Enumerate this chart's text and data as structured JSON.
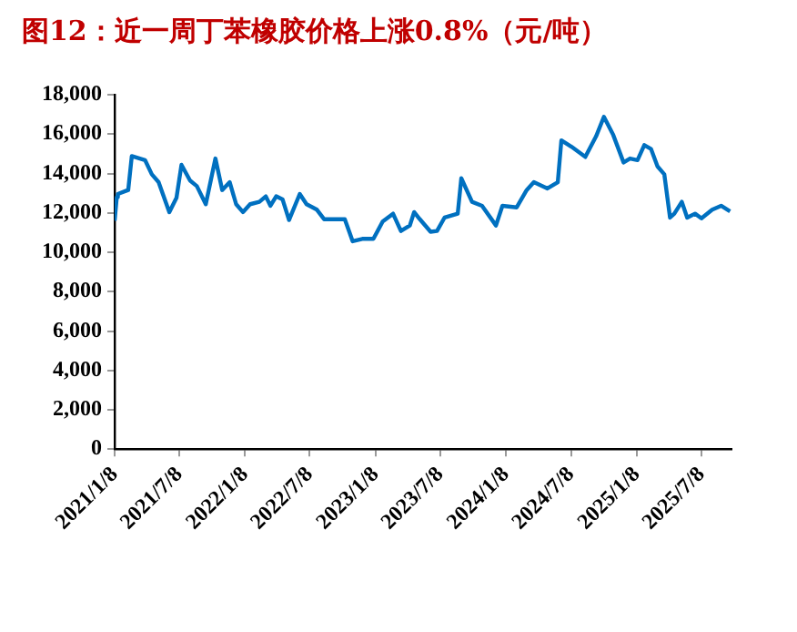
{
  "chart_data": {
    "type": "line",
    "title": "图12：近一周丁苯橡胶价格上涨0.8%（元/吨）",
    "x": [
      "2021-01-08",
      "2021-01-14",
      "2021-01-17",
      "2021-02-15",
      "2021-02-25",
      "2021-04-03",
      "2021-04-22",
      "2021-05-11",
      "2021-06-10",
      "2021-06-30",
      "2021-07-14",
      "2021-08-07",
      "2021-08-26",
      "2021-09-20",
      "2021-10-17",
      "2021-11-05",
      "2021-11-26",
      "2021-12-14",
      "2022-01-02",
      "2022-01-22",
      "2022-02-17",
      "2022-03-07",
      "2022-03-20",
      "2022-04-05",
      "2022-04-23",
      "2022-05-11",
      "2022-06-10",
      "2022-06-29",
      "2022-07-28",
      "2022-08-17",
      "2022-10-14",
      "2022-11-05",
      "2022-12-02",
      "2023-01-02",
      "2023-01-28",
      "2023-02-26",
      "2023-03-20",
      "2023-04-14",
      "2023-04-26",
      "2023-05-11",
      "2023-06-11",
      "2023-06-29",
      "2023-07-20",
      "2023-08-26",
      "2023-09-05",
      "2023-10-05",
      "2023-11-02",
      "2023-12-11",
      "2023-12-29",
      "2024-02-07",
      "2024-03-06",
      "2024-03-26",
      "2024-05-03",
      "2024-06-01",
      "2024-06-11",
      "2024-07-09",
      "2024-08-17",
      "2024-09-16",
      "2024-10-08",
      "2024-11-03",
      "2024-12-02",
      "2024-12-20",
      "2025-01-10",
      "2025-01-29",
      "2025-02-17",
      "2025-03-07",
      "2025-03-26",
      "2025-04-11",
      "2025-04-23",
      "2025-05-14",
      "2025-05-29",
      "2025-06-20",
      "2025-07-08",
      "2025-08-07",
      "2025-09-01",
      "2025-09-26"
    ],
    "series": [
      {
        "color": "#0070c0",
        "values": [
          11600,
          12800,
          12960,
          13160,
          14880,
          14680,
          13960,
          13560,
          12040,
          12760,
          14440,
          13640,
          13360,
          12440,
          14760,
          13160,
          13560,
          12440,
          12040,
          12440,
          12560,
          12840,
          12360,
          12840,
          12680,
          11640,
          12960,
          12440,
          12160,
          11680,
          11680,
          10560,
          10680,
          10680,
          11560,
          11960,
          11080,
          11360,
          12040,
          11700,
          11040,
          11080,
          11760,
          11960,
          13760,
          12560,
          12360,
          11360,
          12360,
          12280,
          13160,
          13560,
          13240,
          13560,
          15680,
          15360,
          14840,
          15880,
          16880,
          15960,
          14560,
          14760,
          14680,
          15440,
          15240,
          14360,
          13960,
          11760,
          11960,
          12560,
          11760,
          11960,
          11720,
          12160,
          12360,
          12080
        ]
      }
    ],
    "xlim": [
      "2021-01-08",
      "2025-09-30"
    ],
    "xticks": [
      {
        "value": "2021-01-08",
        "label": "2021/1/8"
      },
      {
        "value": "2021-07-08",
        "label": "2021/7/8"
      },
      {
        "value": "2022-01-08",
        "label": "2022/1/8"
      },
      {
        "value": "2022-07-08",
        "label": "2022/7/8"
      },
      {
        "value": "2023-01-08",
        "label": "2023/1/8"
      },
      {
        "value": "2023-07-08",
        "label": "2023/7/8"
      },
      {
        "value": "2024-01-08",
        "label": "2024/1/8"
      },
      {
        "value": "2024-07-08",
        "label": "2024/7/8"
      },
      {
        "value": "2025-01-08",
        "label": "2025/1/8"
      },
      {
        "value": "2025-07-08",
        "label": "2025/7/8"
      }
    ],
    "ylim": [
      0,
      18000
    ],
    "yticks": [
      {
        "value": 0,
        "label": "0"
      },
      {
        "value": 2000,
        "label": "2,000"
      },
      {
        "value": 4000,
        "label": "4,000"
      },
      {
        "value": 6000,
        "label": "6,000"
      },
      {
        "value": 8000,
        "label": "8,000"
      },
      {
        "value": 10000,
        "label": "10,000"
      },
      {
        "value": 12000,
        "label": "12,000"
      },
      {
        "value": 14000,
        "label": "14,000"
      },
      {
        "value": 16000,
        "label": "16,000"
      },
      {
        "value": 18000,
        "label": "18,000"
      }
    ],
    "legend": false,
    "marker": "none",
    "line_style": "solid"
  }
}
